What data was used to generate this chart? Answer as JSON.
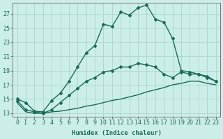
{
  "xlabel": "Humidex (Indice chaleur)",
  "background_color": "#cceee8",
  "grid_color": "#aad4cc",
  "line_color": "#1a6b5a",
  "x_values": [
    0,
    1,
    2,
    3,
    4,
    5,
    6,
    7,
    8,
    9,
    10,
    11,
    12,
    13,
    14,
    15,
    16,
    17,
    18,
    19,
    20,
    21,
    22,
    23
  ],
  "y_top": [
    15.0,
    14.5,
    13.3,
    13.2,
    14.8,
    15.8,
    17.5,
    19.5,
    21.5,
    22.5,
    25.5,
    25.2,
    27.2,
    26.8,
    27.8,
    28.2,
    26.2,
    25.8,
    23.5,
    19.0,
    18.8,
    18.5,
    18.2,
    17.5
  ],
  "y_mid": [
    14.8,
    13.5,
    13.2,
    13.0,
    13.5,
    14.5,
    15.5,
    16.5,
    17.5,
    18.0,
    18.8,
    19.0,
    19.5,
    19.5,
    20.0,
    19.8,
    19.5,
    18.5,
    18.0,
    18.8,
    18.5,
    18.5,
    18.0,
    17.5
  ],
  "y_bot": [
    14.5,
    13.2,
    13.0,
    13.0,
    13.2,
    13.3,
    13.5,
    13.7,
    14.0,
    14.2,
    14.5,
    14.8,
    15.0,
    15.3,
    15.6,
    16.0,
    16.3,
    16.6,
    17.0,
    17.2,
    17.5,
    17.5,
    17.2,
    17.0
  ],
  "ylim": [
    12.5,
    28.5
  ],
  "xlim": [
    -0.5,
    23.5
  ],
  "yticks": [
    13,
    15,
    17,
    19,
    21,
    23,
    25,
    27
  ],
  "xticks": [
    0,
    1,
    2,
    3,
    4,
    5,
    6,
    7,
    8,
    9,
    10,
    11,
    12,
    13,
    14,
    15,
    16,
    17,
    18,
    19,
    20,
    21,
    22,
    23
  ],
  "marker": "D",
  "marker_size": 2.0,
  "linewidth": 1.0,
  "font_size_label": 6.5,
  "font_size_tick": 6.0
}
